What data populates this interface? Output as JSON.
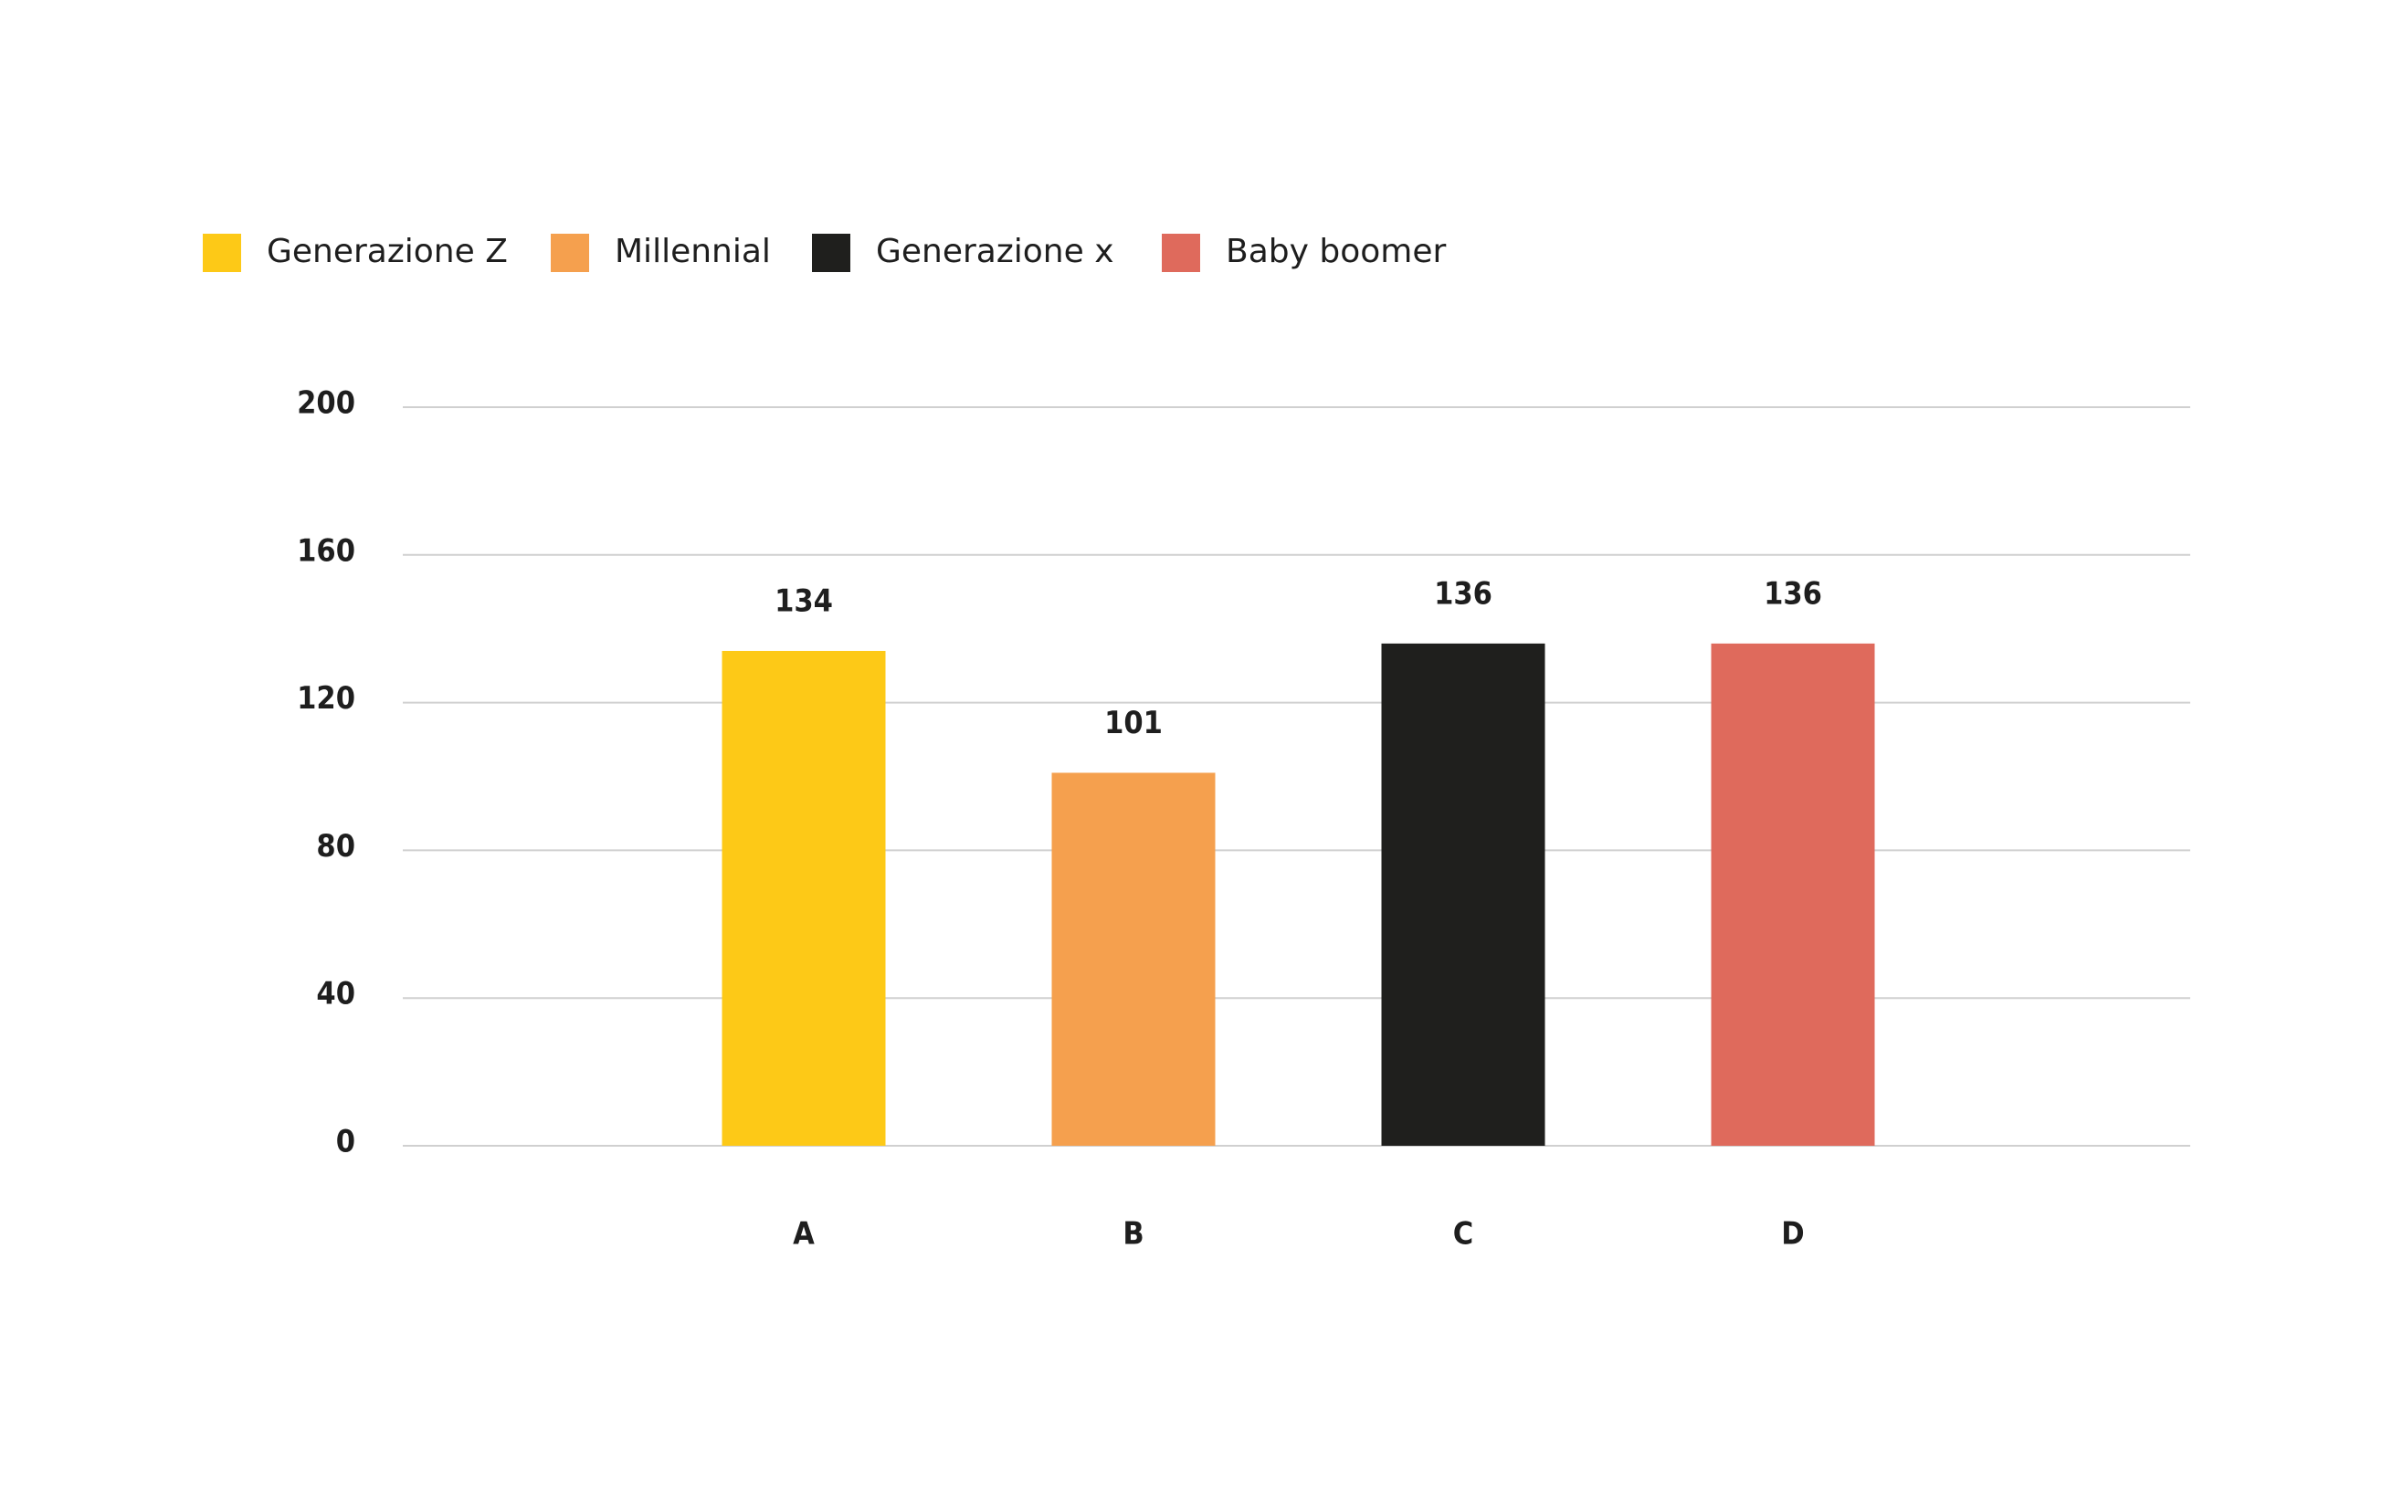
{
  "chart_data": {
    "type": "bar",
    "categories": [
      "A",
      "B",
      "C",
      "D"
    ],
    "series": [
      {
        "name": "Generazione Z",
        "color": "#fdc917",
        "values": [
          134,
          null,
          null,
          null
        ]
      },
      {
        "name": "Millennial",
        "color": "#f5a04e",
        "values": [
          null,
          101,
          null,
          null
        ]
      },
      {
        "name": "Generazione x",
        "color": "#1f1f1d",
        "values": [
          null,
          null,
          136,
          null
        ]
      },
      {
        "name": "Baby boomer",
        "color": "#df6a5c",
        "values": [
          null,
          null,
          null,
          136
        ]
      }
    ],
    "ylim": [
      0,
      200
    ],
    "yticks": [
      0,
      40,
      80,
      120,
      160,
      200
    ],
    "grid": true,
    "legend": "top-left"
  }
}
